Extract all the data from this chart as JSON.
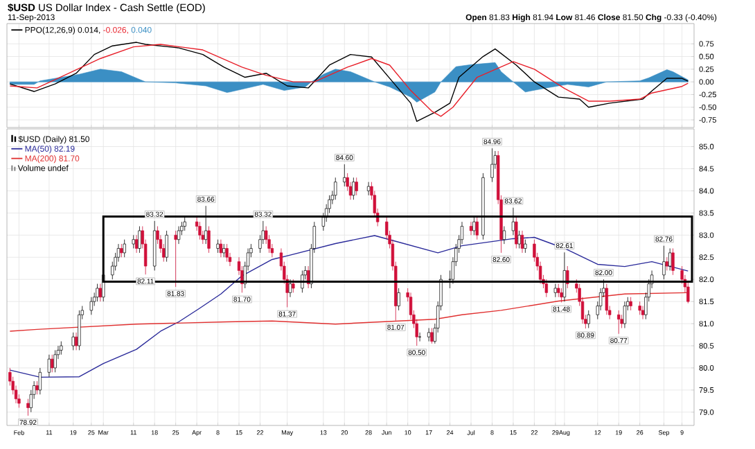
{
  "chart_data": [
    {
      "type": "line",
      "title": "**$USD** US Dollar Index - Cash Settle (EOD)",
      "subtitle": "11-Sep-2013",
      "annotations": [
        "**Open** 81.83 **High** 81.94 **Low** 81.46 **Close** 81.50 **Chg** -0.33 (-0.40%)"
      ],
      "xlim": [
        "2013-01-28",
        "2013-09-13"
      ],
      "ylim": [
        -0.9,
        1.15
      ],
      "xticks": [
        "2013-02-01",
        "2013-02-11",
        "2013-02-19",
        "2013-02-25",
        "2013-03-01",
        "2013-03-11",
        "2013-03-18",
        "2013-03-25",
        "2013-04-01",
        "2013-04-08",
        "2013-04-15",
        "2013-04-22",
        "2013-05-01",
        "2013-05-13",
        "2013-05-20",
        "2013-05-28",
        "2013-06-03",
        "2013-06-10",
        "2013-06-17",
        "2013-06-24",
        "2013-07-01",
        "2013-07-08",
        "2013-07-15",
        "2013-07-22",
        "2013-07-29",
        "2013-08-01",
        "2013-08-12",
        "2013-08-19",
        "2013-08-26",
        "2013-09-03",
        "2013-09-09"
      ],
      "yticks": [
        {
          "value": 0.75,
          "label": "0.75"
        },
        {
          "value": 0.5,
          "label": "0.50"
        },
        {
          "value": 0.25,
          "label": "0.25"
        },
        {
          "value": 0,
          "label": "0.00"
        },
        {
          "value": -0.25,
          "label": "-0.25"
        },
        {
          "value": -0.5,
          "label": "-0.50"
        },
        {
          "value": -0.75,
          "label": "-0.75"
        }
      ],
      "grid": true,
      "legend": "top left",
      "tick_labels": "y",
      "series": [
        {
          "name": "0.040",
          "type": "area",
          "color": "#3b8fc4",
          "x": [
            "2013-01-29",
            "2013-02-06",
            "2013-02-08",
            "2013-02-21",
            "2013-02-28",
            "2013-03-07",
            "2013-03-15",
            "2013-03-25",
            "2013-04-04",
            "2013-04-11",
            "2013-04-12",
            "2013-04-23",
            "2013-04-30",
            "2013-05-07",
            "2013-05-09",
            "2013-05-13",
            "2013-05-17",
            "2013-05-22",
            "2013-05-28",
            "2013-05-30",
            "2013-06-04",
            "2013-06-11",
            "2013-06-13",
            "2013-06-19",
            "2013-06-21",
            "2013-06-26",
            "2013-07-01",
            "2013-07-09",
            "2013-07-11",
            "2013-07-15",
            "2013-07-19",
            "2013-07-26",
            "2013-08-02",
            "2013-08-09",
            "2013-08-15",
            "2013-08-26",
            "2013-08-29",
            "2013-09-04",
            "2013-09-06",
            "2013-09-11"
          ],
          "values": [
            -0.05,
            -0.05,
            0.02,
            0.15,
            0.25,
            0.2,
            0,
            -0.02,
            -0.08,
            -0.21,
            -0.2,
            -0.05,
            -0.17,
            -0.1,
            0,
            0.15,
            0.25,
            0.2,
            0.05,
            0,
            -0.1,
            -0.3,
            -0.4,
            -0.2,
            0,
            0.3,
            0.34,
            0.38,
            0.2,
            0,
            -0.2,
            -0.12,
            -0.05,
            -0.1,
            0,
            0.02,
            0.08,
            0.24,
            0.2,
            0.04
          ]
        },
        {
          "name": "PPO(12,26,9) 0.014,",
          "type": "line",
          "color": "#000000",
          "x": [
            "2013-01-29",
            "2013-02-06",
            "2013-02-13",
            "2013-02-20",
            "2013-02-26",
            "2013-03-04",
            "2013-03-12",
            "2013-03-15",
            "2013-03-26",
            "2013-04-03",
            "2013-04-10",
            "2013-04-17",
            "2013-04-24",
            "2013-05-01",
            "2013-05-08",
            "2013-05-15",
            "2013-05-22",
            "2013-05-29",
            "2013-06-05",
            "2013-06-11",
            "2013-06-13",
            "2013-06-19",
            "2013-06-24",
            "2013-06-27",
            "2013-07-05",
            "2013-07-09",
            "2013-07-16",
            "2013-07-22",
            "2013-07-30",
            "2013-08-06",
            "2013-08-09",
            "2013-08-16",
            "2013-08-27",
            "2013-08-30",
            "2013-09-04",
            "2013-09-09",
            "2013-09-11"
          ],
          "values": [
            -0.04,
            -0.19,
            -0.04,
            0.17,
            0.54,
            0.71,
            0.78,
            0.74,
            0.67,
            0.54,
            0.29,
            0.09,
            0.17,
            -0.08,
            -0.12,
            0.33,
            0.54,
            0.49,
            0,
            -0.42,
            -0.78,
            -0.6,
            -0.42,
            0.09,
            0.5,
            0.65,
            0.33,
            0,
            -0.3,
            -0.34,
            -0.5,
            -0.42,
            -0.34,
            -0.18,
            0.07,
            0.07,
            0.014
          ]
        },
        {
          "name": "-0.026,",
          "type": "line",
          "color": "#e8202a",
          "x": [
            "2013-01-29",
            "2013-02-07",
            "2013-02-15",
            "2013-02-28",
            "2013-03-11",
            "2013-03-20",
            "2013-04-03",
            "2013-04-16",
            "2013-04-24",
            "2013-05-03",
            "2013-05-10",
            "2013-05-21",
            "2013-05-29",
            "2013-06-04",
            "2013-06-11",
            "2013-06-18",
            "2013-06-21",
            "2013-06-25",
            "2013-07-03",
            "2013-07-15",
            "2013-07-22",
            "2013-08-01",
            "2013-08-09",
            "2013-08-16",
            "2013-08-26",
            "2013-08-30",
            "2013-09-09",
            "2013-09-11"
          ],
          "values": [
            -0.08,
            -0.12,
            0.1,
            0.46,
            0.69,
            0.74,
            0.63,
            0.29,
            0.13,
            0,
            0,
            0.29,
            0.46,
            0.33,
            -0.17,
            -0.58,
            -0.68,
            -0.5,
            0.09,
            0.4,
            0.25,
            -0.13,
            -0.38,
            -0.38,
            -0.34,
            -0.22,
            -0.09,
            -0.026
          ]
        }
      ]
    },
    {
      "type": "candlestick",
      "annotations": [
        "$USD (Daily) 81.50",
        "Volume undef",
        {
          "text": "78.92",
          "x": "2013-02-04",
          "y": 78.92
        },
        {
          "text": "82.11",
          "x": "2013-03-15",
          "y": 82.11
        },
        {
          "text": "83.32",
          "x": "2013-03-18",
          "y": 83.32
        },
        {
          "text": "81.83",
          "x": "2013-03-25",
          "y": 81.83
        },
        {
          "text": "83.66",
          "x": "2013-04-04",
          "y": 83.66
        },
        {
          "text": "81.70",
          "x": "2013-04-16",
          "y": 81.7
        },
        {
          "text": "83.32",
          "x": "2013-04-23",
          "y": 83.32
        },
        {
          "text": "81.37",
          "x": "2013-05-01",
          "y": 81.37
        },
        {
          "text": "84.60",
          "x": "2013-05-20",
          "y": 84.6
        },
        {
          "text": "81.07",
          "x": "2013-06-06",
          "y": 81.07
        },
        {
          "text": "80.50",
          "x": "2013-06-13",
          "y": 80.5
        },
        {
          "text": "84.96",
          "x": "2013-07-08",
          "y": 84.96
        },
        {
          "text": "82.60",
          "x": "2013-07-11",
          "y": 82.6
        },
        {
          "text": "83.62",
          "x": "2013-07-15",
          "y": 83.62
        },
        {
          "text": "81.48",
          "x": "2013-07-31",
          "y": 81.48
        },
        {
          "text": "82.61",
          "x": "2013-08-01",
          "y": 82.61
        },
        {
          "text": "80.89",
          "x": "2013-08-08",
          "y": 80.89
        },
        {
          "text": "82.00",
          "x": "2013-08-14",
          "y": 82.0
        },
        {
          "text": "80.77",
          "x": "2013-08-19",
          "y": 80.77
        },
        {
          "text": "82.76",
          "x": "2013-09-03",
          "y": 82.76
        }
      ],
      "xlim": [
        "2013-01-28",
        "2013-09-13"
      ],
      "ylim": [
        78.7,
        85.4
      ],
      "xticks": [
        {
          "value": "2013-02-01",
          "label": "Feb"
        },
        {
          "value": "2013-02-11",
          "label": "11"
        },
        {
          "value": "2013-02-19",
          "label": "19"
        },
        {
          "value": "2013-02-25",
          "label": "25"
        },
        {
          "value": "2013-03-01",
          "label": "Mar"
        },
        {
          "value": "2013-03-11",
          "label": "11"
        },
        {
          "value": "2013-03-18",
          "label": "18"
        },
        {
          "value": "2013-03-25",
          "label": "25"
        },
        {
          "value": "2013-04-01",
          "label": "Apr"
        },
        {
          "value": "2013-04-08",
          "label": "8"
        },
        {
          "value": "2013-04-15",
          "label": "15"
        },
        {
          "value": "2013-04-22",
          "label": "22"
        },
        {
          "value": "2013-05-01",
          "label": "May"
        },
        {
          "value": "2013-05-13",
          "label": "13"
        },
        {
          "value": "2013-05-20",
          "label": "20"
        },
        {
          "value": "2013-05-28",
          "label": "28"
        },
        {
          "value": "2013-06-03",
          "label": "Jun"
        },
        {
          "value": "2013-06-10",
          "label": "10"
        },
        {
          "value": "2013-06-17",
          "label": "17"
        },
        {
          "value": "2013-06-24",
          "label": "24"
        },
        {
          "value": "2013-07-01",
          "label": "Jul"
        },
        {
          "value": "2013-07-08",
          "label": "8"
        },
        {
          "value": "2013-07-15",
          "label": "15"
        },
        {
          "value": "2013-07-22",
          "label": "22"
        },
        {
          "value": "2013-07-29",
          "label": "29"
        },
        {
          "value": "2013-08-01",
          "label": "Aug"
        },
        {
          "value": "2013-08-12",
          "label": "12"
        },
        {
          "value": "2013-08-19",
          "label": "19"
        },
        {
          "value": "2013-08-26",
          "label": "26"
        },
        {
          "value": "2013-09-03",
          "label": "Sep"
        },
        {
          "value": "2013-09-09",
          "label": "9"
        }
      ],
      "yticks": [
        {
          "value": 79,
          "label": "79.0"
        },
        {
          "value": 79.5,
          "label": "79.5"
        },
        {
          "value": 80,
          "label": "80.0"
        },
        {
          "value": 80.5,
          "label": "80.5"
        },
        {
          "value": 81,
          "label": "81.0"
        },
        {
          "value": 81.5,
          "label": "81.5"
        },
        {
          "value": 82,
          "label": "82.0"
        },
        {
          "value": 82.5,
          "label": "82.5"
        },
        {
          "value": 83,
          "label": "83.0"
        },
        {
          "value": 83.5,
          "label": "83.5"
        },
        {
          "value": 84,
          "label": "84.0"
        },
        {
          "value": 84.5,
          "label": "84.5"
        },
        {
          "value": 85,
          "label": "85.0"
        }
      ],
      "grid": true,
      "legend": "top left",
      "x": [
        "2013-01-29",
        "2013-01-30",
        "2013-01-31",
        "2013-02-01",
        "2013-02-04",
        "2013-02-05",
        "2013-02-06",
        "2013-02-07",
        "2013-02-08",
        "2013-02-11",
        "2013-02-12",
        "2013-02-13",
        "2013-02-14",
        "2013-02-15",
        "2013-02-19",
        "2013-02-20",
        "2013-02-21",
        "2013-02-22",
        "2013-02-25",
        "2013-02-26",
        "2013-02-27",
        "2013-02-28",
        "2013-03-01",
        "2013-03-04",
        "2013-03-05",
        "2013-03-06",
        "2013-03-07",
        "2013-03-08",
        "2013-03-11",
        "2013-03-12",
        "2013-03-13",
        "2013-03-14",
        "2013-03-15",
        "2013-03-18",
        "2013-03-19",
        "2013-03-20",
        "2013-03-21",
        "2013-03-22",
        "2013-03-25",
        "2013-03-26",
        "2013-03-27",
        "2013-03-28",
        "2013-04-01",
        "2013-04-02",
        "2013-04-03",
        "2013-04-04",
        "2013-04-05",
        "2013-04-08",
        "2013-04-09",
        "2013-04-10",
        "2013-04-11",
        "2013-04-12",
        "2013-04-15",
        "2013-04-16",
        "2013-04-17",
        "2013-04-18",
        "2013-04-19",
        "2013-04-22",
        "2013-04-23",
        "2013-04-24",
        "2013-04-25",
        "2013-04-26",
        "2013-04-29",
        "2013-04-30",
        "2013-05-01",
        "2013-05-02",
        "2013-05-03",
        "2013-05-06",
        "2013-05-07",
        "2013-05-08",
        "2013-05-09",
        "2013-05-10",
        "2013-05-13",
        "2013-05-14",
        "2013-05-15",
        "2013-05-16",
        "2013-05-17",
        "2013-05-20",
        "2013-05-21",
        "2013-05-22",
        "2013-05-23",
        "2013-05-24",
        "2013-05-28",
        "2013-05-29",
        "2013-05-30",
        "2013-05-31",
        "2013-06-03",
        "2013-06-04",
        "2013-06-05",
        "2013-06-06",
        "2013-06-07",
        "2013-06-10",
        "2013-06-11",
        "2013-06-12",
        "2013-06-13",
        "2013-06-14",
        "2013-06-17",
        "2013-06-18",
        "2013-06-19",
        "2013-06-20",
        "2013-06-21",
        "2013-06-24",
        "2013-06-25",
        "2013-06-26",
        "2013-06-27",
        "2013-06-28",
        "2013-07-01",
        "2013-07-02",
        "2013-07-03",
        "2013-07-05",
        "2013-07-08",
        "2013-07-09",
        "2013-07-10",
        "2013-07-11",
        "2013-07-12",
        "2013-07-15",
        "2013-07-16",
        "2013-07-17",
        "2013-07-18",
        "2013-07-19",
        "2013-07-22",
        "2013-07-23",
        "2013-07-24",
        "2013-07-25",
        "2013-07-26",
        "2013-07-29",
        "2013-07-30",
        "2013-07-31",
        "2013-08-01",
        "2013-08-02",
        "2013-08-05",
        "2013-08-06",
        "2013-08-07",
        "2013-08-08",
        "2013-08-09",
        "2013-08-12",
        "2013-08-13",
        "2013-08-14",
        "2013-08-15",
        "2013-08-16",
        "2013-08-19",
        "2013-08-20",
        "2013-08-21",
        "2013-08-22",
        "2013-08-23",
        "2013-08-26",
        "2013-08-27",
        "2013-08-28",
        "2013-08-29",
        "2013-08-30",
        "2013-09-03",
        "2013-09-04",
        "2013-09-05",
        "2013-09-06",
        "2013-09-09",
        "2013-09-10",
        "2013-09-11"
      ],
      "ohlc": [
        [
          79.9,
          80.0,
          79.6,
          79.7
        ],
        [
          79.7,
          79.8,
          79.4,
          79.5
        ],
        [
          79.5,
          79.6,
          79.2,
          79.3
        ],
        [
          79.3,
          79.4,
          79.1,
          79.2
        ],
        [
          79.2,
          79.3,
          78.92,
          79.1
        ],
        [
          79.1,
          79.5,
          79.0,
          79.4
        ],
        [
          79.4,
          79.7,
          79.3,
          79.6
        ],
        [
          79.6,
          79.7,
          79.4,
          79.5
        ],
        [
          79.5,
          80.0,
          79.4,
          79.9
        ],
        [
          79.9,
          80.3,
          79.8,
          80.2
        ],
        [
          80.2,
          80.3,
          79.9,
          80.0
        ],
        [
          80.0,
          80.4,
          79.9,
          80.3
        ],
        [
          80.3,
          80.5,
          80.2,
          80.4
        ],
        [
          80.4,
          80.6,
          80.3,
          80.5
        ],
        [
          80.5,
          80.8,
          80.4,
          80.7
        ],
        [
          80.7,
          80.8,
          80.4,
          80.5
        ],
        [
          80.5,
          81.3,
          80.4,
          81.2
        ],
        [
          81.2,
          81.4,
          81.1,
          81.3
        ],
        [
          81.3,
          81.6,
          81.2,
          81.5
        ],
        [
          81.5,
          81.7,
          81.4,
          81.6
        ],
        [
          81.6,
          81.9,
          81.5,
          81.8
        ],
        [
          81.8,
          81.9,
          81.5,
          81.6
        ],
        [
          81.6,
          82.2,
          81.5,
          82.1
        ],
        [
          82.1,
          82.4,
          82.0,
          82.3
        ],
        [
          82.3,
          82.6,
          82.2,
          82.5
        ],
        [
          82.5,
          82.8,
          82.4,
          82.7
        ],
        [
          82.7,
          82.8,
          82.5,
          82.6
        ],
        [
          82.6,
          82.9,
          82.5,
          82.8
        ],
        [
          82.8,
          83.0,
          82.7,
          82.9
        ],
        [
          82.9,
          83.0,
          82.6,
          82.7
        ],
        [
          82.7,
          83.2,
          82.6,
          83.1
        ],
        [
          83.1,
          83.2,
          82.7,
          82.8
        ],
        [
          82.8,
          82.9,
          82.11,
          82.3
        ],
        [
          82.3,
          83.32,
          82.2,
          83.1
        ],
        [
          83.1,
          83.2,
          82.8,
          82.9
        ],
        [
          82.9,
          83.0,
          82.6,
          82.7
        ],
        [
          82.7,
          82.8,
          82.4,
          82.5
        ],
        [
          82.5,
          83.1,
          82.4,
          83.0
        ],
        [
          83.0,
          83.1,
          81.83,
          82.9
        ],
        [
          82.9,
          83.2,
          82.8,
          83.1
        ],
        [
          83.1,
          83.3,
          83.0,
          83.2
        ],
        [
          83.2,
          83.4,
          83.1,
          83.3
        ],
        [
          83.3,
          83.4,
          83.1,
          83.2
        ],
        [
          83.2,
          83.3,
          82.9,
          83.0
        ],
        [
          83.0,
          83.1,
          82.8,
          82.9
        ],
        [
          82.9,
          83.66,
          82.8,
          83.1
        ],
        [
          83.1,
          83.2,
          82.6,
          82.7
        ],
        [
          82.7,
          82.9,
          82.6,
          82.8
        ],
        [
          82.8,
          82.9,
          82.5,
          82.6
        ],
        [
          82.6,
          82.8,
          82.5,
          82.7
        ],
        [
          82.7,
          82.8,
          82.4,
          82.5
        ],
        [
          82.5,
          82.6,
          82.3,
          82.4
        ],
        [
          82.4,
          82.5,
          82.1,
          82.2
        ],
        [
          82.2,
          82.3,
          81.7,
          81.9
        ],
        [
          81.9,
          82.4,
          81.8,
          82.3
        ],
        [
          82.3,
          82.7,
          82.2,
          82.6
        ],
        [
          82.6,
          82.8,
          82.5,
          82.7
        ],
        [
          82.7,
          83.0,
          82.6,
          82.9
        ],
        [
          82.9,
          83.32,
          82.8,
          83.1
        ],
        [
          83.1,
          83.2,
          82.8,
          82.9
        ],
        [
          82.9,
          83.0,
          82.6,
          82.7
        ],
        [
          82.7,
          82.8,
          82.5,
          82.6
        ],
        [
          82.6,
          82.7,
          82.2,
          82.3
        ],
        [
          82.3,
          82.4,
          81.9,
          82.0
        ],
        [
          82.0,
          82.1,
          81.37,
          81.7
        ],
        [
          81.7,
          82.0,
          81.6,
          81.9
        ],
        [
          81.9,
          82.0,
          81.7,
          81.8
        ],
        [
          81.8,
          82.2,
          81.7,
          82.1
        ],
        [
          82.1,
          82.3,
          82.0,
          82.2
        ],
        [
          82.2,
          82.3,
          81.8,
          81.9
        ],
        [
          81.9,
          82.8,
          81.8,
          82.7
        ],
        [
          82.7,
          83.3,
          82.6,
          83.2
        ],
        [
          83.2,
          83.5,
          83.1,
          83.4
        ],
        [
          83.4,
          83.7,
          83.3,
          83.6
        ],
        [
          83.6,
          83.9,
          83.5,
          83.8
        ],
        [
          83.8,
          84.0,
          83.7,
          83.9
        ],
        [
          83.9,
          84.3,
          83.8,
          84.2
        ],
        [
          84.2,
          84.6,
          84.1,
          84.3
        ],
        [
          84.3,
          84.4,
          84.0,
          84.1
        ],
        [
          84.1,
          84.2,
          83.8,
          83.9
        ],
        [
          83.9,
          84.3,
          83.8,
          84.2
        ],
        [
          84.2,
          84.3,
          83.9,
          84.0
        ],
        [
          84.0,
          84.2,
          83.9,
          84.1
        ],
        [
          84.1,
          84.2,
          83.8,
          83.9
        ],
        [
          83.9,
          84.0,
          83.4,
          83.5
        ],
        [
          83.5,
          83.6,
          83.2,
          83.3
        ],
        [
          83.3,
          83.4,
          82.9,
          83.0
        ],
        [
          83.0,
          83.1,
          82.7,
          82.8
        ],
        [
          82.8,
          82.9,
          82.2,
          82.3
        ],
        [
          82.3,
          82.4,
          81.07,
          81.4
        ],
        [
          81.4,
          81.8,
          81.3,
          81.7
        ],
        [
          81.7,
          81.8,
          81.5,
          81.6
        ],
        [
          81.6,
          81.7,
          81.1,
          81.2
        ],
        [
          81.2,
          81.3,
          80.9,
          81.0
        ],
        [
          81.0,
          81.1,
          80.5,
          80.7
        ],
        [
          80.7,
          80.8,
          80.6,
          80.7
        ],
        [
          80.7,
          80.9,
          80.6,
          80.8
        ],
        [
          80.8,
          80.9,
          80.55,
          80.6
        ],
        [
          80.6,
          81.0,
          80.55,
          80.9
        ],
        [
          80.9,
          81.5,
          80.8,
          81.4
        ],
        [
          81.4,
          82.1,
          81.3,
          82.0
        ],
        [
          82.0,
          82.2,
          81.8,
          82.0
        ],
        [
          82.0,
          82.5,
          81.9,
          82.4
        ],
        [
          82.4,
          82.8,
          82.3,
          82.7
        ],
        [
          82.7,
          83.0,
          82.6,
          82.9
        ],
        [
          82.9,
          83.3,
          82.8,
          83.2
        ],
        [
          83.2,
          83.3,
          83.0,
          83.1
        ],
        [
          83.1,
          83.4,
          83.0,
          83.3
        ],
        [
          83.3,
          83.4,
          82.9,
          83.0
        ],
        [
          83.0,
          84.4,
          82.9,
          84.3
        ],
        [
          84.3,
          84.96,
          84.2,
          84.6
        ],
        [
          84.6,
          84.9,
          84.5,
          84.8
        ],
        [
          84.8,
          84.9,
          83.7,
          83.8
        ],
        [
          83.8,
          83.9,
          82.6,
          82.9
        ],
        [
          82.9,
          83.2,
          82.8,
          83.1
        ],
        [
          83.1,
          83.62,
          83.0,
          83.3
        ],
        [
          83.3,
          83.4,
          82.7,
          82.8
        ],
        [
          82.8,
          83.1,
          82.7,
          83.0
        ],
        [
          83.0,
          83.1,
          82.6,
          82.7
        ],
        [
          82.7,
          82.9,
          82.6,
          82.8
        ],
        [
          82.8,
          82.9,
          82.4,
          82.5
        ],
        [
          82.5,
          82.6,
          82.2,
          82.3
        ],
        [
          82.3,
          82.4,
          81.9,
          82.0
        ],
        [
          82.0,
          82.1,
          81.8,
          81.9
        ],
        [
          81.9,
          82.0,
          81.6,
          81.7
        ],
        [
          81.7,
          81.9,
          81.6,
          81.8
        ],
        [
          81.8,
          81.9,
          81.6,
          81.7
        ],
        [
          81.7,
          81.8,
          81.48,
          81.6
        ],
        [
          81.6,
          82.61,
          81.5,
          82.2
        ],
        [
          82.2,
          82.3,
          81.8,
          81.9
        ],
        [
          81.9,
          82.0,
          81.7,
          81.8
        ],
        [
          81.8,
          81.9,
          81.4,
          81.5
        ],
        [
          81.5,
          81.6,
          81.0,
          81.1
        ],
        [
          81.1,
          81.2,
          80.89,
          81.0
        ],
        [
          81.0,
          81.3,
          80.9,
          81.2
        ],
        [
          81.2,
          81.5,
          81.1,
          81.4
        ],
        [
          81.4,
          81.8,
          81.3,
          81.7
        ],
        [
          81.7,
          82.0,
          81.6,
          81.8
        ],
        [
          81.8,
          81.9,
          81.2,
          81.3
        ],
        [
          81.3,
          81.4,
          81.1,
          81.2
        ],
        [
          81.2,
          81.3,
          80.77,
          81.1
        ],
        [
          81.1,
          81.2,
          80.9,
          81.0
        ],
        [
          81.0,
          81.5,
          80.9,
          81.4
        ],
        [
          81.4,
          81.6,
          81.3,
          81.5
        ],
        [
          81.5,
          81.6,
          81.3,
          81.4
        ],
        [
          81.4,
          81.5,
          81.2,
          81.3
        ],
        [
          81.3,
          81.4,
          81.1,
          81.2
        ],
        [
          81.2,
          81.7,
          81.1,
          81.6
        ],
        [
          81.6,
          82.0,
          81.5,
          81.9
        ],
        [
          81.9,
          82.2,
          81.8,
          82.1
        ],
        [
          82.1,
          82.76,
          82.0,
          82.4
        ],
        [
          82.4,
          82.5,
          82.2,
          82.3
        ],
        [
          82.3,
          82.7,
          82.2,
          82.6
        ],
        [
          82.6,
          82.7,
          82.1,
          82.2
        ],
        [
          82.2,
          82.3,
          81.9,
          82.0
        ],
        [
          82.0,
          82.1,
          81.7,
          81.83
        ],
        [
          81.83,
          81.94,
          81.46,
          81.5
        ]
      ],
      "series": [
        {
          "name": "MA(50) 82.19",
          "type": "line",
          "color": "#2a2a9a",
          "x": [
            "2013-01-29",
            "2013-02-08",
            "2013-02-21",
            "2013-03-01",
            "2013-03-12",
            "2013-03-20",
            "2013-03-26",
            "2013-04-02",
            "2013-04-09",
            "2013-04-16",
            "2013-04-26",
            "2013-05-02",
            "2013-05-17",
            "2013-05-30",
            "2013-06-06",
            "2013-06-20",
            "2013-06-28",
            "2013-07-15",
            "2013-07-22",
            "2013-08-01",
            "2013-08-12",
            "2013-08-21",
            "2013-08-30",
            "2013-09-11"
          ],
          "values": [
            79.95,
            79.79,
            79.8,
            80.1,
            80.42,
            80.83,
            81.04,
            81.35,
            81.67,
            82.08,
            82.45,
            82.55,
            82.81,
            82.99,
            82.86,
            82.6,
            82.76,
            82.92,
            82.95,
            82.7,
            82.34,
            82.29,
            82.4,
            82.19
          ]
        },
        {
          "name": "MA(200) 81.70",
          "type": "line",
          "color": "#e03030",
          "x": [
            "2013-01-29",
            "2013-02-07",
            "2013-03-12",
            "2013-04-11",
            "2013-04-26",
            "2013-05-17",
            "2013-06-19",
            "2013-06-28",
            "2013-07-11",
            "2013-07-30",
            "2013-08-21",
            "2013-09-11"
          ],
          "values": [
            80.83,
            80.87,
            80.99,
            81.04,
            81.06,
            80.99,
            81.1,
            81.2,
            81.3,
            81.51,
            81.67,
            81.7
          ]
        }
      ]
    }
  ]
}
